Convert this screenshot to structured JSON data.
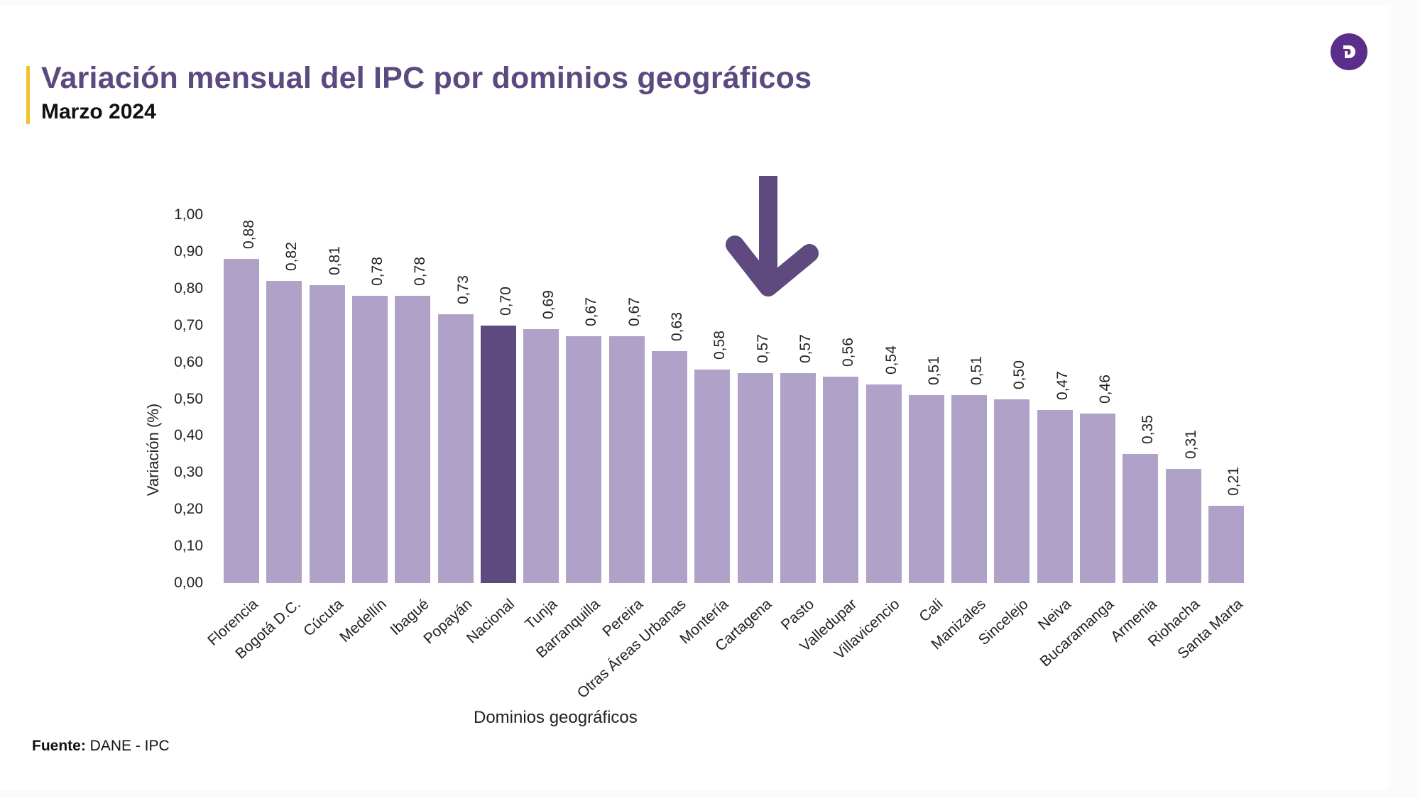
{
  "header": {
    "title": "Variación mensual del IPC por dominios geográficos",
    "subtitle": "Marzo 2024",
    "logo_letter": "D",
    "logo_icon": "brand-logo-icon"
  },
  "colors": {
    "title": "#5B4A80",
    "accent": "#F2C230",
    "bar": "#B0A1C9",
    "bar_highlight": "#5E4A7E",
    "arrow": "#5E4A7E",
    "logo": "#5A2E8A"
  },
  "annotation": {
    "arrow_icon": "down-arrow-icon",
    "points_to": "Cartagena"
  },
  "footer": {
    "source_label": "Fuente:",
    "source_value": "DANE - IPC"
  },
  "chart_data": {
    "type": "bar",
    "title": "Variación mensual del IPC por dominios geográficos",
    "subtitle": "Marzo 2024",
    "xlabel": "Dominios geográficos",
    "ylabel": "Variación (%)",
    "ylim": [
      0,
      1.0
    ],
    "yticks": [
      "0,00",
      "0,10",
      "0,20",
      "0,30",
      "0,40",
      "0,50",
      "0,60",
      "0,70",
      "0,80",
      "0,90",
      "1,00"
    ],
    "grid": false,
    "legend": null,
    "highlight": "Nacional",
    "categories": [
      "Florencia",
      "Bogotá D.C.",
      "Cúcuta",
      "Medellín",
      "Ibagué",
      "Popayán",
      "Nacional",
      "Tunja",
      "Barranquilla",
      "Pereira",
      "Otras Áreas Urbanas",
      "Montería",
      "Cartagena",
      "Pasto",
      "Valledupar",
      "Villavicencio",
      "Cali",
      "Manizales",
      "Sincelejo",
      "Neiva",
      "Bucaramanga",
      "Armenia",
      "Riohacha",
      "Santa Marta"
    ],
    "values": [
      0.88,
      0.82,
      0.81,
      0.78,
      0.78,
      0.73,
      0.7,
      0.69,
      0.67,
      0.67,
      0.63,
      0.58,
      0.57,
      0.57,
      0.56,
      0.54,
      0.51,
      0.51,
      0.5,
      0.47,
      0.46,
      0.35,
      0.31,
      0.21
    ],
    "value_labels": [
      "0,88",
      "0,82",
      "0,81",
      "0,78",
      "0,78",
      "0,73",
      "0,70",
      "0,69",
      "0,67",
      "0,67",
      "0,63",
      "0,58",
      "0,57",
      "0,57",
      "0,56",
      "0,54",
      "0,51",
      "0,51",
      "0,50",
      "0,47",
      "0,46",
      "0,35",
      "0,31",
      "0,21"
    ],
    "source": "Fuente: DANE - IPC"
  }
}
